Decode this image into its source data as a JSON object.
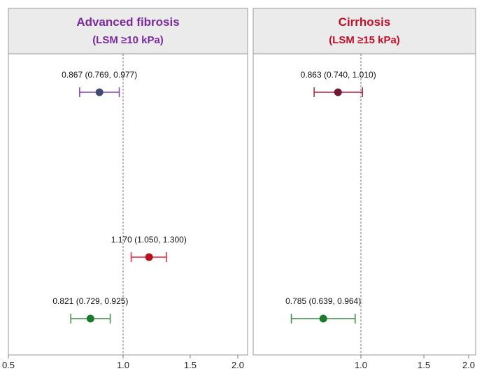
{
  "chart_data": [
    {
      "type": "forest",
      "title": "Advanced fibrosis",
      "subtitle": "(LSM ≥10 kPa)",
      "title_color": "#7B2A9E",
      "xlim": [
        0.5,
        2.0
      ],
      "x_scale": "log",
      "reference_line": 1.0,
      "xticks": [
        0.5,
        1.0,
        1.5,
        2.0
      ],
      "xtick_labels": [
        "0.5",
        "1.0",
        "1.5",
        "2.0"
      ],
      "rows": [
        {
          "estimate": 0.867,
          "lower": 0.769,
          "upper": 0.977,
          "label": "0.867 (0.769, 0.977)",
          "line_color": "#8B3DB3",
          "dot_color": "#3E4A6E"
        },
        {
          "estimate": 1.17,
          "lower": 1.05,
          "upper": 1.3,
          "label": "1.170 (1.050, 1.300)",
          "line_color": "#E3243B",
          "dot_color": "#B5121E"
        },
        {
          "estimate": 0.821,
          "lower": 0.729,
          "upper": 0.925,
          "label": "0.821 (0.729, 0.925)",
          "line_color": "#3C8A47",
          "dot_color": "#1B7A2B"
        }
      ]
    },
    {
      "type": "forest",
      "title": "Cirrhosis",
      "subtitle": "(LSM ≥15 kPa)",
      "title_color": "#C0102A",
      "xlim": [
        0.5,
        2.0
      ],
      "x_scale": "log",
      "reference_line": 1.0,
      "xticks": [
        1.0,
        1.5,
        2.0
      ],
      "xtick_labels": [
        "1.0",
        "1.5",
        "2.0"
      ],
      "rows": [
        {
          "estimate": 0.863,
          "lower": 0.74,
          "upper": 1.01,
          "label": "0.863 (0.740, 1.010)",
          "line_color": "#B0223F",
          "dot_color": "#6E1835"
        },
        {
          "estimate": 0.785,
          "lower": 0.639,
          "upper": 0.964,
          "label": "0.785 (0.639, 0.964)",
          "line_color": "#3C8A47",
          "dot_color": "#1B7A2B"
        }
      ]
    }
  ]
}
